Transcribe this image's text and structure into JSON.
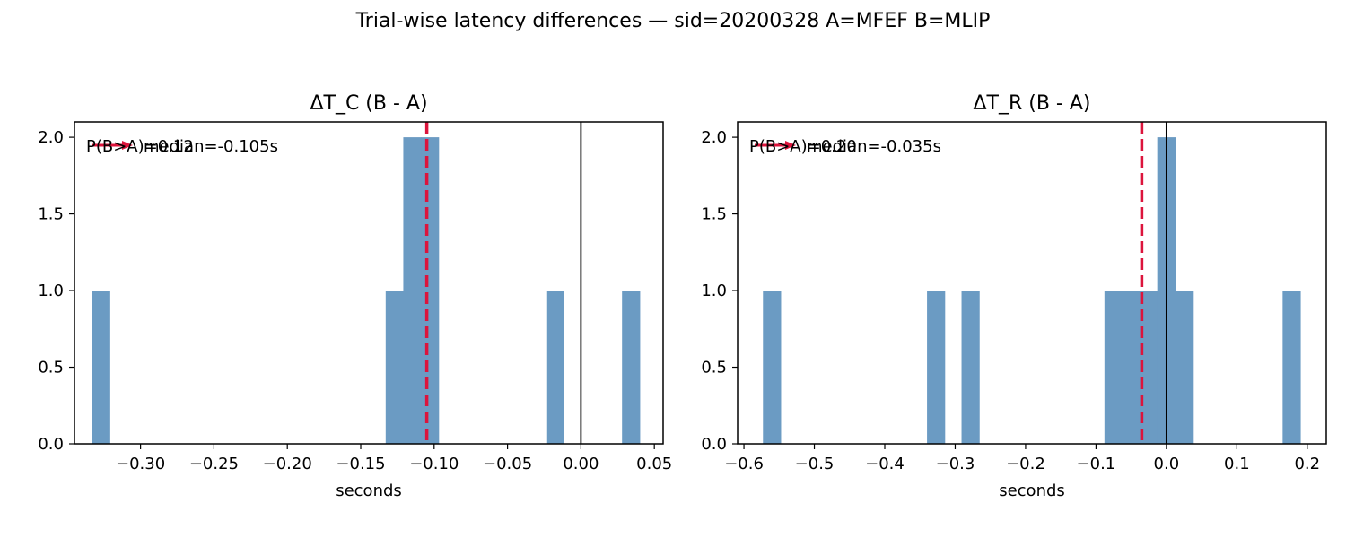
{
  "figure": {
    "suptitle": "Trial-wise latency differences — sid=20200328  A=MFEF  B=MLIP"
  },
  "chart_data": [
    {
      "type": "bar",
      "title": "ΔT_C (B - A)",
      "xlabel": "seconds",
      "ylabel": "",
      "xlim": [
        -0.345,
        0.056
      ],
      "ylim": [
        0,
        2.1
      ],
      "xticks": [
        -0.3,
        -0.25,
        -0.2,
        -0.15,
        -0.1,
        -0.05,
        0.0,
        0.05
      ],
      "xtick_labels": [
        "−0.30",
        "−0.25",
        "−0.20",
        "−0.15",
        "−0.10",
        "−0.05",
        "0.00",
        "0.05"
      ],
      "yticks": [
        0.0,
        0.5,
        1.0,
        1.5,
        2.0
      ],
      "ytick_labels": [
        "0.0",
        "0.5",
        "1.0",
        "1.5",
        "2.0"
      ],
      "bar_color": "#6b9bc3",
      "bins": [
        {
          "x0": -0.333,
          "x1": -0.321,
          "count": 1
        },
        {
          "x0": -0.133,
          "x1": -0.121,
          "count": 1
        },
        {
          "x0": -0.121,
          "x1": -0.109,
          "count": 2
        },
        {
          "x0": -0.109,
          "x1": -0.097,
          "count": 2
        },
        {
          "x0": -0.023,
          "x1": -0.012,
          "count": 1
        },
        {
          "x0": 0.028,
          "x1": 0.04,
          "count": 1
        }
      ],
      "median_line": {
        "x": -0.105,
        "color": "#dc143c",
        "style": "dashed"
      },
      "zero_line": {
        "x": 0.0,
        "color": "#000000"
      },
      "annotations": {
        "prob_text": "P(B>A)=0.12",
        "median_text": "median=-0.105s"
      },
      "legend": "top-left",
      "grid": false
    },
    {
      "type": "bar",
      "title": "ΔT_R (B - A)",
      "xlabel": "seconds",
      "ylabel": "",
      "xlim": [
        -0.609,
        0.227
      ],
      "ylim": [
        0,
        2.1
      ],
      "xticks": [
        -0.6,
        -0.5,
        -0.4,
        -0.3,
        -0.2,
        -0.1,
        0.0,
        0.1,
        0.2
      ],
      "xtick_labels": [
        "−0.6",
        "−0.5",
        "−0.4",
        "−0.3",
        "−0.2",
        "−0.1",
        "0.0",
        "0.1",
        "0.2"
      ],
      "yticks": [
        0.0,
        0.5,
        1.0,
        1.5,
        2.0
      ],
      "ytick_labels": [
        "0.0",
        "0.5",
        "1.0",
        "1.5",
        "2.0"
      ],
      "bar_color": "#6b9bc3",
      "bins": [
        {
          "x0": -0.573,
          "x1": -0.548,
          "count": 1
        },
        {
          "x0": -0.34,
          "x1": -0.315,
          "count": 1
        },
        {
          "x0": -0.291,
          "x1": -0.266,
          "count": 1
        },
        {
          "x0": -0.088,
          "x1": -0.063,
          "count": 1
        },
        {
          "x0": -0.063,
          "x1": -0.038,
          "count": 1
        },
        {
          "x0": -0.038,
          "x1": -0.013,
          "count": 1
        },
        {
          "x0": -0.013,
          "x1": 0.013,
          "count": 2
        },
        {
          "x0": 0.013,
          "x1": 0.038,
          "count": 1
        },
        {
          "x0": 0.165,
          "x1": 0.19,
          "count": 1
        }
      ],
      "median_line": {
        "x": -0.035,
        "color": "#dc143c",
        "style": "dashed"
      },
      "zero_line": {
        "x": 0.0,
        "color": "#000000"
      },
      "annotations": {
        "prob_text": "P(B>A)=0.20",
        "median_text": "median=-0.035s"
      },
      "legend": "top-left",
      "grid": false
    }
  ]
}
